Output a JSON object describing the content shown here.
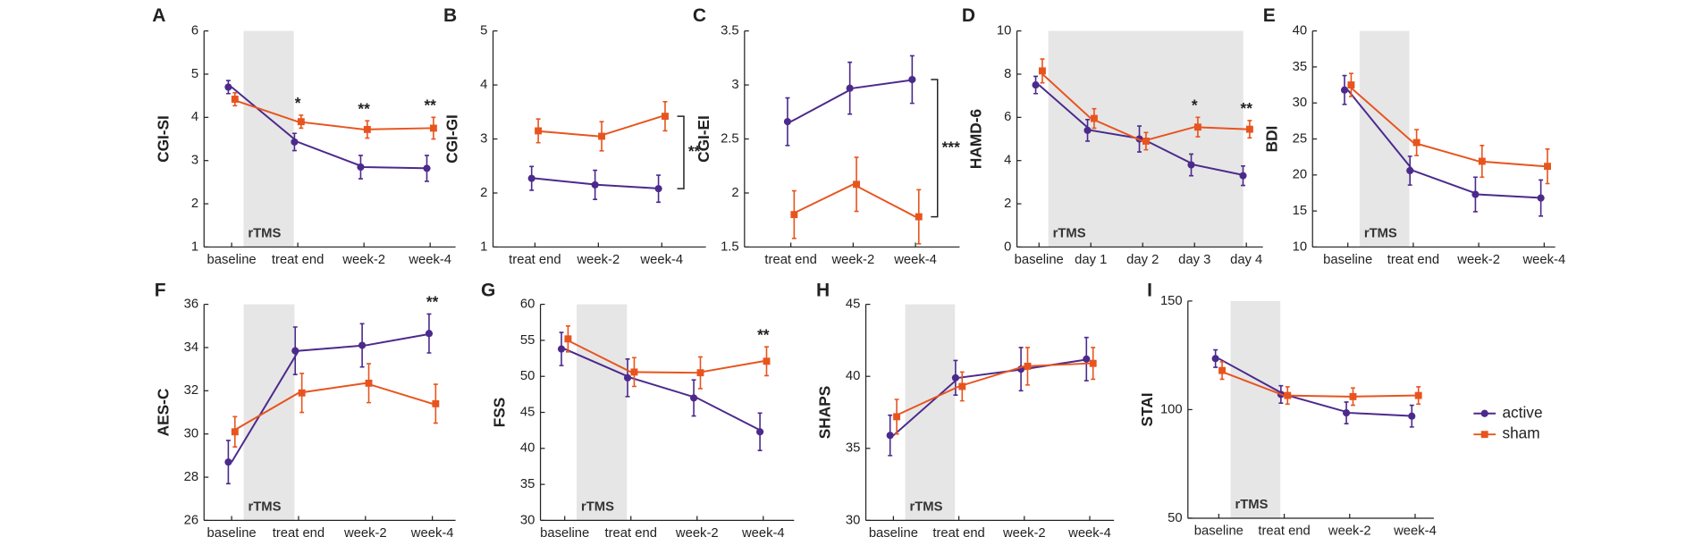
{
  "chart_data": [
    {
      "type": "line",
      "label": "A",
      "ylabel": "CGI-SI",
      "categories": [
        "baseline",
        "treat end",
        "week-2",
        "week-4"
      ],
      "ylim": [
        1,
        6
      ],
      "yticks": [
        1,
        2,
        3,
        4,
        5,
        6
      ],
      "shaded_span": {
        "label": "rTMS",
        "from": "baseline",
        "to": "treat end"
      },
      "series": [
        {
          "name": "active",
          "color": "#4b2a8c",
          "values": [
            4.7,
            3.43,
            2.85,
            2.82
          ],
          "errors": [
            0.15,
            0.2,
            0.27,
            0.3
          ]
        },
        {
          "name": "sham",
          "color": "#e8541e",
          "values": [
            4.42,
            3.9,
            3.72,
            3.75
          ],
          "errors": [
            0.15,
            0.15,
            0.2,
            0.25
          ]
        }
      ],
      "annotations": [
        {
          "text": "*",
          "category": "treat end"
        },
        {
          "text": "**",
          "category": "week-2"
        },
        {
          "text": "**",
          "category": "week-4"
        }
      ]
    },
    {
      "type": "line",
      "label": "B",
      "ylabel": "CGI-GI",
      "categories": [
        "treat end",
        "week-2",
        "week-4"
      ],
      "ylim": [
        1,
        5
      ],
      "yticks": [
        1,
        2,
        3,
        4,
        5
      ],
      "series": [
        {
          "name": "active",
          "color": "#4b2a8c",
          "values": [
            2.27,
            2.15,
            2.08
          ],
          "errors": [
            0.22,
            0.27,
            0.25
          ]
        },
        {
          "name": "sham",
          "color": "#e8541e",
          "values": [
            3.15,
            3.05,
            3.42
          ],
          "errors": [
            0.22,
            0.27,
            0.27
          ]
        }
      ],
      "bracket": {
        "text": "**"
      }
    },
    {
      "type": "line",
      "label": "C",
      "ylabel": "CGI-EI",
      "categories": [
        "treat end",
        "week-2",
        "week-4"
      ],
      "ylim": [
        1.5,
        3.5
      ],
      "yticks": [
        1.5,
        2,
        2.5,
        3,
        3.5
      ],
      "series": [
        {
          "name": "active",
          "color": "#4b2a8c",
          "values": [
            2.66,
            2.97,
            3.05
          ],
          "errors": [
            0.22,
            0.24,
            0.22
          ]
        },
        {
          "name": "sham",
          "color": "#e8541e",
          "values": [
            1.8,
            2.08,
            1.78
          ],
          "errors": [
            0.22,
            0.25,
            0.25
          ]
        }
      ],
      "bracket": {
        "text": "***"
      }
    },
    {
      "type": "line",
      "label": "D",
      "ylabel": "HAMD-6",
      "categories": [
        "baseline",
        "day 1",
        "day 2",
        "day 3",
        "day 4"
      ],
      "ylim": [
        0,
        10
      ],
      "yticks": [
        0,
        2,
        4,
        6,
        8,
        10
      ],
      "shaded_span": {
        "label": "rTMS",
        "from": "baseline",
        "to": "day 4"
      },
      "series": [
        {
          "name": "active",
          "color": "#4b2a8c",
          "values": [
            7.5,
            5.4,
            5.0,
            3.8,
            3.3
          ],
          "errors": [
            0.4,
            0.5,
            0.6,
            0.5,
            0.45
          ]
        },
        {
          "name": "sham",
          "color": "#e8541e",
          "values": [
            8.15,
            5.95,
            4.9,
            5.55,
            5.45
          ],
          "errors": [
            0.55,
            0.45,
            0.4,
            0.45,
            0.4
          ]
        }
      ],
      "annotations": [
        {
          "text": "*",
          "category": "day 3"
        },
        {
          "text": "**",
          "category": "day 4"
        }
      ]
    },
    {
      "type": "line",
      "label": "E",
      "ylabel": "BDI",
      "categories": [
        "baseline",
        "treat end",
        "week-2",
        "week-4"
      ],
      "ylim": [
        10,
        40
      ],
      "yticks": [
        10,
        15,
        20,
        25,
        30,
        35,
        40
      ],
      "shaded_span": {
        "label": "rTMS",
        "from": "baseline",
        "to": "treat end"
      },
      "series": [
        {
          "name": "active",
          "color": "#4b2a8c",
          "values": [
            31.8,
            20.6,
            17.3,
            16.8
          ],
          "errors": [
            2,
            2,
            2.4,
            2.5
          ]
        },
        {
          "name": "sham",
          "color": "#e8541e",
          "values": [
            32.5,
            24.5,
            21.9,
            21.2
          ],
          "errors": [
            1.6,
            1.8,
            2.2,
            2.4
          ]
        }
      ]
    },
    {
      "type": "line",
      "label": "F",
      "ylabel": "AES-C",
      "categories": [
        "baseline",
        "treat end",
        "week-2",
        "week-4"
      ],
      "ylim": [
        26,
        36
      ],
      "yticks": [
        26,
        28,
        30,
        32,
        34,
        36
      ],
      "shaded_span": {
        "label": "rTMS",
        "from": "baseline",
        "to": "treat end"
      },
      "series": [
        {
          "name": "active",
          "color": "#4b2a8c",
          "values": [
            28.7,
            33.85,
            34.1,
            34.65
          ],
          "errors": [
            1,
            1.1,
            1,
            0.9
          ]
        },
        {
          "name": "sham",
          "color": "#e8541e",
          "values": [
            30.1,
            31.9,
            32.35,
            31.4
          ],
          "errors": [
            0.7,
            0.9,
            0.9,
            0.9
          ]
        }
      ],
      "annotations": [
        {
          "text": "**",
          "category": "week-4"
        }
      ]
    },
    {
      "type": "line",
      "label": "G",
      "ylabel": "FSS",
      "categories": [
        "baseline",
        "treat end",
        "week-2",
        "week-4"
      ],
      "ylim": [
        30,
        60
      ],
      "yticks": [
        30,
        35,
        40,
        45,
        50,
        55,
        60
      ],
      "shaded_span": {
        "label": "rTMS",
        "from": "baseline",
        "to": "treat end"
      },
      "series": [
        {
          "name": "active",
          "color": "#4b2a8c",
          "values": [
            53.8,
            49.8,
            47.0,
            42.3
          ],
          "errors": [
            2.3,
            2.6,
            2.5,
            2.6
          ]
        },
        {
          "name": "sham",
          "color": "#e8541e",
          "values": [
            55.2,
            50.6,
            50.5,
            52.1
          ],
          "errors": [
            1.8,
            2,
            2.2,
            2
          ]
        }
      ],
      "annotations": [
        {
          "text": "**",
          "category": "week-4"
        }
      ]
    },
    {
      "type": "line",
      "label": "H",
      "ylabel": "SHAPS",
      "categories": [
        "baseline",
        "treat end",
        "week-2",
        "week-4"
      ],
      "ylim": [
        30,
        45
      ],
      "yticks": [
        30,
        35,
        40,
        45
      ],
      "shaded_span": {
        "label": "rTMS",
        "from": "baseline",
        "to": "treat end"
      },
      "series": [
        {
          "name": "active",
          "color": "#4b2a8c",
          "values": [
            35.9,
            39.9,
            40.5,
            41.2
          ],
          "errors": [
            1.4,
            1.2,
            1.5,
            1.5
          ]
        },
        {
          "name": "sham",
          "color": "#e8541e",
          "values": [
            37.2,
            39.3,
            40.7,
            40.9
          ],
          "errors": [
            1.2,
            1,
            1.3,
            1.1
          ]
        }
      ]
    },
    {
      "type": "line",
      "label": "I",
      "ylabel": "STAI",
      "categories": [
        "baseline",
        "treat end",
        "week-2",
        "week-4"
      ],
      "ylim": [
        50,
        150
      ],
      "yticks": [
        50,
        100,
        150
      ],
      "shaded_span": {
        "label": "rTMS",
        "from": "baseline",
        "to": "treat end"
      },
      "series": [
        {
          "name": "active",
          "color": "#4b2a8c",
          "values": [
            123.5,
            107,
            98.5,
            97
          ],
          "errors": [
            4,
            4,
            5,
            5
          ]
        },
        {
          "name": "sham",
          "color": "#e8541e",
          "values": [
            118,
            106.5,
            106,
            106.5
          ],
          "errors": [
            4,
            4,
            4,
            4
          ]
        }
      ]
    }
  ]
}
